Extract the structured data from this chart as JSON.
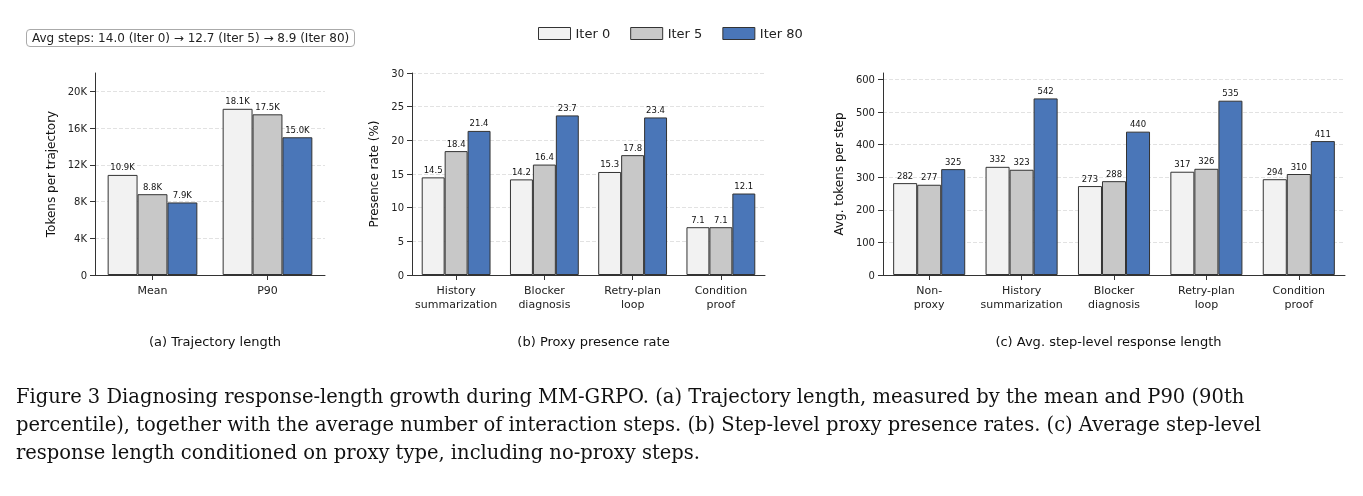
{
  "chart_data": [
    {
      "type": "bar",
      "title": "(a) Trajectory length",
      "ylabel": "Tokens per trajectory",
      "categories": [
        "Mean",
        "P90"
      ],
      "series": [
        {
          "color": "#f2f2f2",
          "values": [
            10900,
            18100
          ],
          "value_labels": [
            "10.9K",
            "18.1K"
          ]
        },
        {
          "color": "#c8c8c8",
          "values": [
            8800,
            17500
          ],
          "value_labels": [
            "8.8K",
            "17.5K"
          ]
        },
        {
          "color": "#4a76b8",
          "values": [
            7900,
            15000
          ],
          "value_labels": [
            "7.9K",
            "15.0K"
          ]
        }
      ],
      "ylim": [
        0,
        22000
      ],
      "yticks": [
        0,
        {
          "value": 4000,
          "label": "4K"
        },
        {
          "value": 8000,
          "label": "8K"
        },
        {
          "value": 12000,
          "label": "12K"
        },
        {
          "value": 16000,
          "label": "16K"
        },
        {
          "value": 20000,
          "label": "20K"
        }
      ],
      "grid": "y",
      "annotations": [
        "Avg steps: 14.0 (Iter 0) → 12.7 (Iter 5) → 8.9 (Iter 80)"
      ]
    },
    {
      "type": "bar",
      "title": "(b) Proxy presence rate",
      "ylabel": "Presence rate (%)",
      "categories": [
        "History\nsummarization",
        "Blocker\ndiagnosis",
        "Retry-plan\nloop",
        "Condition\nproof"
      ],
      "series": [
        {
          "name": "Iter 0",
          "color": "#f2f2f2",
          "values": [
            14.5,
            14.2,
            15.3,
            7.1
          ]
        },
        {
          "name": "Iter 5",
          "color": "#c8c8c8",
          "values": [
            18.4,
            16.4,
            17.8,
            7.1
          ]
        },
        {
          "name": "Iter 80",
          "color": "#4a76b8",
          "values": [
            21.4,
            23.7,
            23.4,
            12.1
          ]
        }
      ],
      "ylim": [
        0,
        30
      ],
      "yticks": [
        0,
        5,
        10,
        15,
        20,
        25,
        30
      ],
      "grid": "y",
      "data_labels": true,
      "legend": "top"
    },
    {
      "type": "bar",
      "title": "(c) Avg. step-level response length",
      "ylabel": "Avg. tokens per step",
      "categories": [
        "Non-\nproxy",
        "History\nsummarization",
        "Blocker\ndiagnosis",
        "Retry-plan\nloop",
        "Condition\nproof"
      ],
      "series": [
        {
          "color": "#f2f2f2",
          "values": [
            282,
            332,
            273,
            317,
            294
          ]
        },
        {
          "color": "#c8c8c8",
          "values": [
            277,
            323,
            288,
            326,
            310
          ]
        },
        {
          "color": "#4a76b8",
          "values": [
            325,
            542,
            440,
            535,
            411
          ]
        }
      ],
      "ylim": [
        0,
        620
      ],
      "yticks": [
        0,
        100,
        200,
        300,
        400,
        500,
        600
      ],
      "grid": "y",
      "data_labels": true,
      "annotations": [
        "Figure 3  Diagnosing response-length growth during MM-GRPO. (a) Trajectory length, measured by the mean and P90 (90th percentile), together with the average number of interaction steps. (b) Step-level proxy presence rates. (c) Average step-level response length conditioned on proxy type, including no-proxy steps."
      ]
    }
  ]
}
